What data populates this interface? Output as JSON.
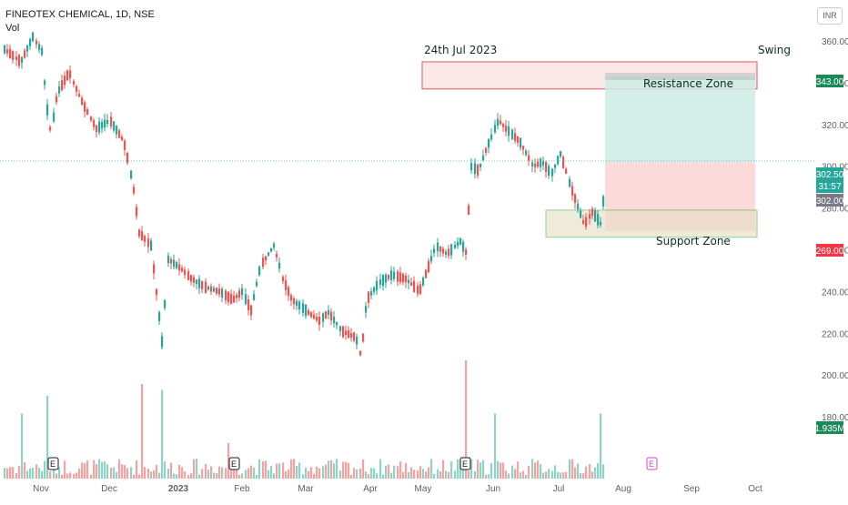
{
  "header": {
    "symbol_line": "FINEOTEX CHEMICAL, 1D, NSE",
    "volume_label": "Vol"
  },
  "annotations": {
    "date_label": "24th Jul 2023",
    "style_label": "Swing",
    "resistance_label": "Resistance Zone",
    "support_label": "Support Zone"
  },
  "currency": "INR",
  "price_badges": {
    "target": "343.00",
    "last": "302.50",
    "countdown": "31:57",
    "entry": "302.00",
    "stop": "269.00",
    "volume": "1.935M"
  },
  "colors": {
    "up": "#26a69a",
    "down": "#ef5350",
    "up_vol": "#8fd3c7",
    "down_vol": "#f5a3a1",
    "target_badge": "#1b8a5a",
    "stop_badge": "#f23645",
    "entry_badge": "#787b86",
    "target_zone": "#cdebe4",
    "stop_zone": "#fbd4d4",
    "support_zone": "#e6dfc3"
  },
  "chart_data": {
    "type": "candlestick",
    "y_axis": {
      "ticks": [
        "360.00",
        "340.00",
        "320.00",
        "300.00",
        "280.00",
        "260.00",
        "240.00",
        "220.00",
        "200.00",
        "180.00"
      ],
      "range": [
        172,
        366
      ]
    },
    "x_axis": {
      "ticks": [
        "Nov",
        "Dec",
        "2023",
        "Feb",
        "Mar",
        "Apr",
        "May",
        "Jun",
        "Jul",
        "Aug",
        "Sep",
        "Oct"
      ]
    },
    "key_points": [
      {
        "date": "Oct 2022",
        "close": 362
      },
      {
        "date": "Nov 2022",
        "close": 315
      },
      {
        "date": "Nov 2022 (rebound)",
        "close": 345
      },
      {
        "date": "Dec 2022",
        "close": 318
      },
      {
        "date": "Dec 2022 (drop)",
        "close": 265
      },
      {
        "date": "Dec 2022 low",
        "close": 211
      },
      {
        "date": "Jan 2023",
        "close": 256
      },
      {
        "date": "Feb 2023",
        "close": 260
      },
      {
        "date": "Mar 2023",
        "close": 221
      },
      {
        "date": "Apr 2023",
        "close": 240
      },
      {
        "date": "May 2023",
        "close": 262
      },
      {
        "date": "Jun 2023 high",
        "close": 324
      },
      {
        "date": "Jul 2023 low",
        "close": 269
      },
      {
        "date": "24 Jul 2023",
        "close": 302.5
      }
    ],
    "zones": {
      "resistance": {
        "low": 337,
        "high": 350
      },
      "support": {
        "low": 266,
        "high": 279
      },
      "target": 343,
      "entry": 302,
      "stop": 269
    },
    "event_markers": [
      "E",
      "E",
      "E",
      "E"
    ]
  }
}
